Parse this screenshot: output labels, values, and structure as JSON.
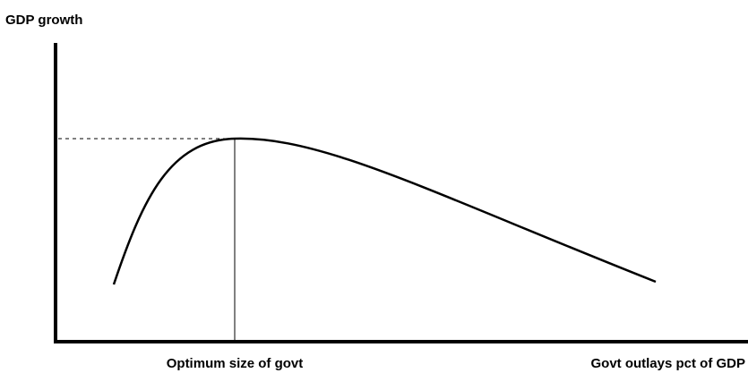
{
  "y_axis_label": "GDP growth",
  "optimum_label": "Optimum size of govt",
  "x_axis_label": "Govt outlays pct of GDP"
}
